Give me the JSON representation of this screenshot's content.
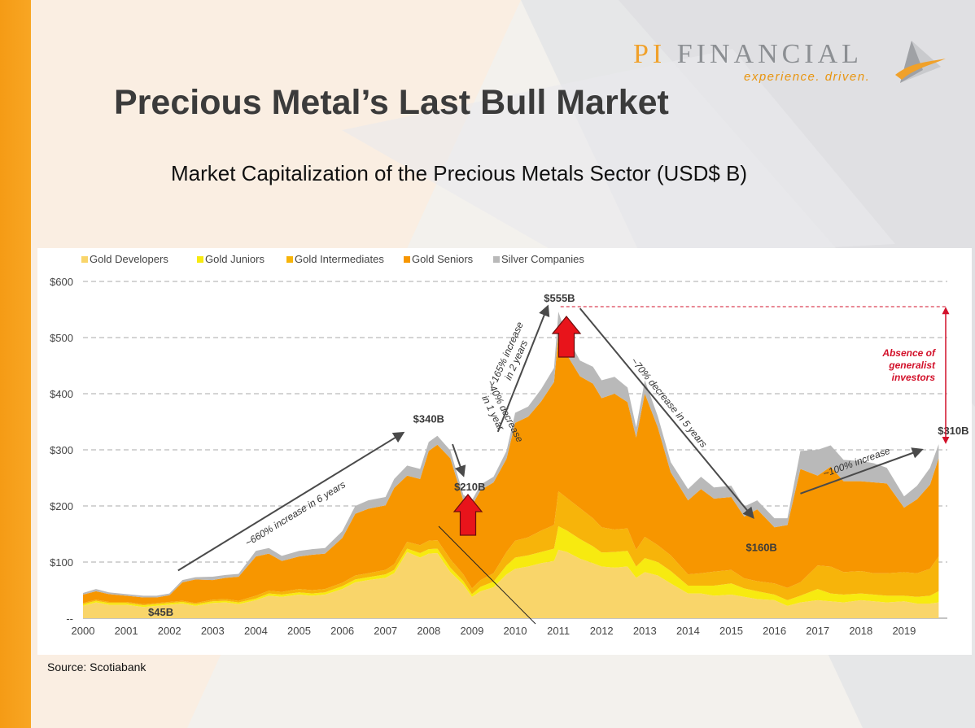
{
  "slide": {
    "title": "Precious Metal’s Last Bull Market",
    "source": "Source: Scotiabank"
  },
  "logo": {
    "name_prefix": "PI",
    "name_rest": " FINANCIAL",
    "tagline": "experience. driven.",
    "icon": "pi-financial-triangle-logo"
  },
  "colors": {
    "left_bar": "#f59b15",
    "arrow_red": "#e8141b",
    "annotation_red": "#d2112a"
  },
  "chart_data": {
    "type": "area",
    "stacked": true,
    "title": "Market Capitalization of the Precious Metals Sector (USD$ B)",
    "xlabel": "",
    "ylabel": "",
    "ylim": [
      0,
      600
    ],
    "xlim": [
      2000,
      2020
    ],
    "yticks": [
      0,
      100,
      200,
      300,
      400,
      500,
      600
    ],
    "ytick_labels": [
      "--",
      "$100",
      "$200",
      "$300",
      "$400",
      "$500",
      "$600"
    ],
    "xticks": [
      2000,
      2001,
      2002,
      2003,
      2004,
      2005,
      2006,
      2007,
      2008,
      2009,
      2010,
      2011,
      2012,
      2013,
      2014,
      2015,
      2016,
      2017,
      2018,
      2019
    ],
    "grid": "horizontal-dashed",
    "legend_position": "top-left",
    "x": [
      2000.0,
      2000.3,
      2000.6,
      2001.0,
      2001.4,
      2001.7,
      2002.0,
      2002.3,
      2002.6,
      2003.0,
      2003.3,
      2003.6,
      2004.0,
      2004.3,
      2004.6,
      2005.0,
      2005.3,
      2005.6,
      2006.0,
      2006.3,
      2006.6,
      2007.0,
      2007.2,
      2007.5,
      2007.8,
      2008.0,
      2008.2,
      2008.5,
      2008.8,
      2009.0,
      2009.2,
      2009.5,
      2009.8,
      2010.0,
      2010.3,
      2010.6,
      2010.9,
      2011.0,
      2011.2,
      2011.5,
      2011.8,
      2012.0,
      2012.3,
      2012.6,
      2012.8,
      2013.0,
      2013.3,
      2013.6,
      2014.0,
      2014.3,
      2014.6,
      2015.0,
      2015.3,
      2015.6,
      2016.0,
      2016.3,
      2016.6,
      2017.0,
      2017.3,
      2017.6,
      2018.0,
      2018.3,
      2018.6,
      2019.0,
      2019.3,
      2019.6,
      2019.8
    ],
    "series": [
      {
        "name": "Gold Developers",
        "color": "#f9d56a",
        "values": [
          22,
          28,
          24,
          24,
          20,
          22,
          24,
          26,
          22,
          27,
          28,
          25,
          32,
          40,
          38,
          42,
          40,
          42,
          52,
          64,
          68,
          72,
          80,
          118,
          108,
          115,
          116,
          82,
          60,
          38,
          48,
          55,
          78,
          88,
          92,
          98,
          102,
          122,
          118,
          106,
          98,
          92,
          90,
          92,
          72,
          82,
          76,
          62,
          44,
          44,
          40,
          42,
          38,
          34,
          32,
          22,
          28,
          32,
          30,
          28,
          32,
          30,
          28,
          30,
          26,
          26,
          28
        ]
      },
      {
        "name": "Gold Juniors",
        "color": "#f7ea10",
        "values": [
          3,
          3,
          3,
          3,
          3,
          3,
          3,
          3,
          3,
          3,
          3,
          3,
          3,
          4,
          4,
          4,
          4,
          4,
          5,
          5,
          5,
          6,
          6,
          6,
          8,
          8,
          8,
          8,
          6,
          5,
          8,
          10,
          16,
          20,
          20,
          20,
          22,
          42,
          38,
          35,
          30,
          25,
          28,
          28,
          20,
          25,
          24,
          22,
          14,
          14,
          18,
          20,
          15,
          14,
          10,
          10,
          12,
          20,
          14,
          14,
          12,
          12,
          12,
          10,
          12,
          14,
          20
        ]
      },
      {
        "name": "Gold Intermediates",
        "color": "#f7b40a",
        "values": [
          2,
          2,
          2,
          2,
          2,
          2,
          2,
          2,
          2,
          3,
          3,
          3,
          5,
          5,
          5,
          6,
          6,
          6,
          6,
          7,
          7,
          8,
          10,
          12,
          14,
          15,
          15,
          15,
          12,
          10,
          12,
          15,
          24,
          30,
          32,
          38,
          42,
          62,
          58,
          55,
          50,
          45,
          40,
          40,
          30,
          38,
          30,
          28,
          20,
          22,
          25,
          24,
          18,
          18,
          20,
          22,
          24,
          42,
          48,
          40,
          40,
          38,
          40,
          42,
          42,
          48,
          62
        ]
      },
      {
        "name": "Gold Seniors",
        "color": "#f79600",
        "values": [
          15,
          15,
          14,
          11,
          12,
          10,
          12,
          33,
          42,
          35,
          38,
          43,
          70,
          66,
          55,
          58,
          63,
          63,
          80,
          110,
          115,
          115,
          136,
          118,
          118,
          160,
          170,
          180,
          132,
          148,
          160,
          162,
          166,
          210,
          215,
          230,
          255,
          280,
          255,
          235,
          240,
          230,
          242,
          225,
          200,
          255,
          210,
          148,
          132,
          150,
          130,
          130,
          110,
          128,
          100,
          112,
          202,
          160,
          178,
          162,
          160,
          162,
          160,
          115,
          132,
          150,
          175
        ]
      },
      {
        "name": "Silver Companies",
        "color": "#b9b9b9",
        "values": [
          3,
          4,
          3,
          3,
          3,
          3,
          3,
          4,
          4,
          6,
          5,
          5,
          10,
          10,
          9,
          10,
          10,
          10,
          12,
          14,
          15,
          15,
          16,
          18,
          18,
          16,
          16,
          14,
          10,
          9,
          10,
          10,
          14,
          18,
          18,
          22,
          25,
          40,
          32,
          28,
          30,
          32,
          30,
          26,
          18,
          24,
          20,
          18,
          20,
          22,
          20,
          20,
          18,
          16,
          16,
          12,
          32,
          46,
          38,
          38,
          36,
          34,
          28,
          20,
          24,
          30,
          25
        ]
      }
    ],
    "annotations": [
      {
        "type": "value",
        "text": "$45B",
        "x": 2001.8,
        "y": 45
      },
      {
        "type": "value",
        "text": "$340B",
        "x": 2008.0,
        "y": 340
      },
      {
        "type": "value",
        "text": "$210B",
        "x": 2008.95,
        "y": 210
      },
      {
        "type": "value",
        "text": "$555B",
        "x": 2011.1,
        "y": 555
      },
      {
        "type": "value",
        "text": "$160B",
        "x": 2015.7,
        "y": 160
      },
      {
        "type": "value",
        "text": "$310B",
        "x": 2019.8,
        "y": 310
      },
      {
        "type": "trend",
        "text": "~660% increase in 6 years",
        "from": [
          2002.2,
          85
        ],
        "to": [
          2007.4,
          330
        ]
      },
      {
        "type": "trend",
        "text": "~40% decrease in 1 year",
        "from": [
          2008.55,
          310
        ],
        "to": [
          2008.8,
          255
        ]
      },
      {
        "type": "trend",
        "text": "~165% increase in 2 years",
        "from": [
          2009.6,
          332
        ],
        "to": [
          2010.75,
          555
        ]
      },
      {
        "type": "trend",
        "text": "~70% decrease in 5 years",
        "from": [
          2011.5,
          552
        ],
        "to": [
          2015.5,
          180
        ]
      },
      {
        "type": "trend",
        "text": "~100% increase",
        "from": [
          2016.6,
          222
        ],
        "to": [
          2019.4,
          300
        ]
      },
      {
        "type": "bracket",
        "text": "Absence of generalist investors",
        "y_top": 555,
        "y_bottom": 310
      }
    ]
  }
}
